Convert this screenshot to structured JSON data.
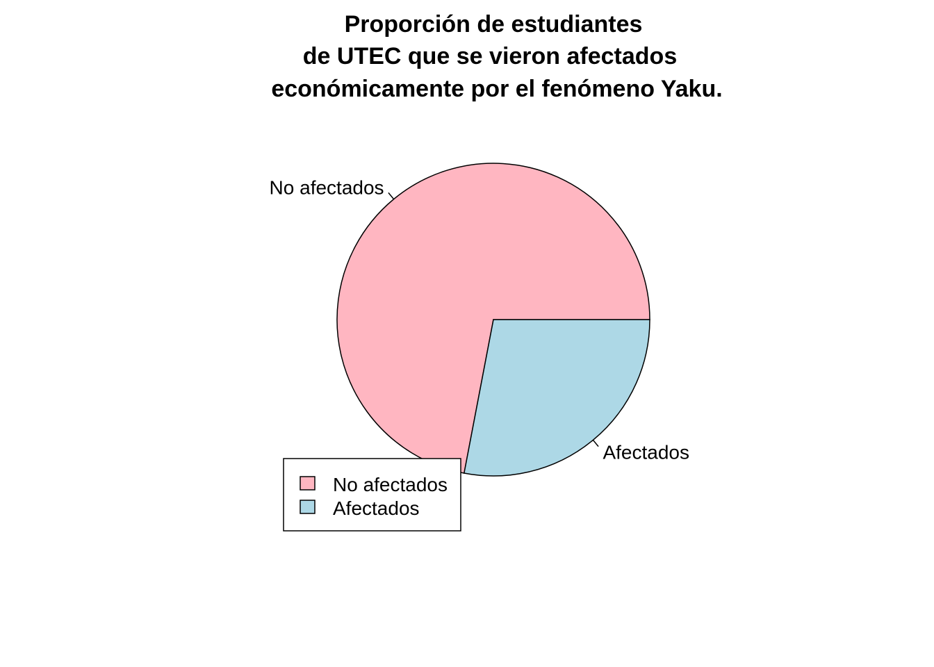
{
  "chart_data": {
    "type": "pie",
    "title_lines": [
      "Proporción de estudiantes",
      "de UTEC que se vieron afectados",
      "económicamente por el fenómeno Yaku."
    ],
    "slices": [
      {
        "label": "No afectados",
        "value": 0.72,
        "color": "#FFB6C1"
      },
      {
        "label": "Afectados",
        "value": 0.28,
        "color": "#ADD8E6"
      }
    ],
    "start_angle_deg": 0,
    "direction": "counterclockwise",
    "legend": {
      "position": "bottom-left",
      "entries": [
        "No afectados",
        "Afectados"
      ]
    }
  }
}
